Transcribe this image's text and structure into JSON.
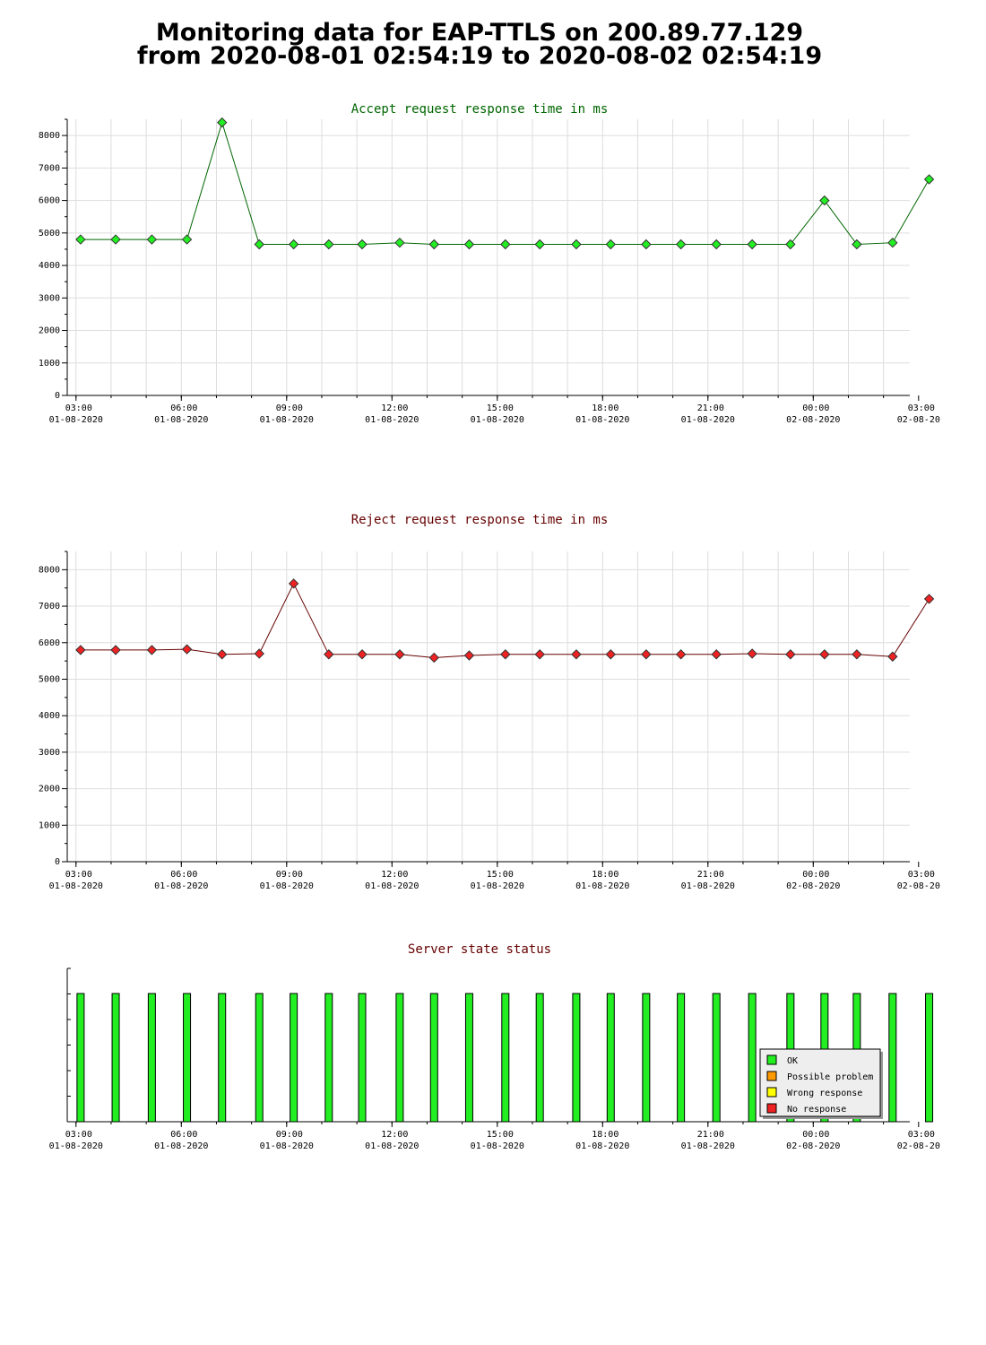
{
  "page": {
    "title_line1": "Monitoring data for EAP-TTLS on 200.89.77.129",
    "title_line2": "from 2020-08-01 02:54:19 to 2020-08-02 02:54:19"
  },
  "colors": {
    "accept_title": "#006600",
    "reject_title": "#660000",
    "status_title": "#660000",
    "accept_marker": "#22ee22",
    "accept_line": "#006600",
    "reject_marker": "#ee2222",
    "reject_line": "#660000",
    "ok": "#22ee22",
    "possible_problem": "#ff9900",
    "wrong_response": "#ffff00",
    "no_response": "#ee2222",
    "grid": "#dddddd"
  },
  "chart_data": [
    {
      "type": "line",
      "title": "Accept request response time in ms",
      "x_unit": "hours",
      "x": [
        0.13,
        1.13,
        2.16,
        3.16,
        4.16,
        5.22,
        6.2,
        7.2,
        8.15,
        9.22,
        10.2,
        11.2,
        12.23,
        13.21,
        14.25,
        15.23,
        16.24,
        17.23,
        18.24,
        19.26,
        20.35,
        21.32,
        22.24,
        23.26,
        24.3
      ],
      "series": [
        {
          "values": [
            4800,
            4800,
            4800,
            4800,
            8400,
            4650,
            4650,
            4650,
            4650,
            4700,
            4650,
            4650,
            4650,
            4650,
            4650,
            4650,
            4650,
            4650,
            4650,
            4650,
            4650,
            6000,
            4650,
            4700,
            6650
          ]
        }
      ],
      "ylim": [
        0,
        8500
      ],
      "yticks": [
        0,
        1000,
        2000,
        3000,
        4000,
        5000,
        6000,
        7000,
        8000
      ],
      "xlim": [
        -0.25,
        23.75
      ],
      "xticks": [
        {
          "t": 0,
          "time": "03:00",
          "date": "01-08-2020"
        },
        {
          "t": 3,
          "time": "06:00",
          "date": "01-08-2020"
        },
        {
          "t": 6,
          "time": "09:00",
          "date": "01-08-2020"
        },
        {
          "t": 9,
          "time": "12:00",
          "date": "01-08-2020"
        },
        {
          "t": 12,
          "time": "15:00",
          "date": "01-08-2020"
        },
        {
          "t": 15,
          "time": "18:00",
          "date": "01-08-2020"
        },
        {
          "t": 18,
          "time": "21:00",
          "date": "01-08-2020"
        },
        {
          "t": 21,
          "time": "00:00",
          "date": "02-08-2020"
        },
        {
          "t": 24,
          "time": "03:00",
          "date": "02-08-20"
        }
      ],
      "grid": true
    },
    {
      "type": "line",
      "title": "Reject request response time in ms",
      "x_unit": "hours",
      "x": [
        0.13,
        1.13,
        2.16,
        3.16,
        4.16,
        5.22,
        6.2,
        7.2,
        8.15,
        9.22,
        10.2,
        11.2,
        12.23,
        13.21,
        14.25,
        15.23,
        16.24,
        17.23,
        18.24,
        19.26,
        20.35,
        21.32,
        22.24,
        23.26,
        24.3
      ],
      "series": [
        {
          "values": [
            5800,
            5800,
            5800,
            5820,
            5680,
            5700,
            7620,
            5680,
            5680,
            5680,
            5590,
            5650,
            5680,
            5680,
            5680,
            5680,
            5680,
            5680,
            5680,
            5700,
            5680,
            5680,
            5680,
            5620,
            7200
          ]
        }
      ],
      "ylim": [
        0,
        8500
      ],
      "yticks": [
        0,
        1000,
        2000,
        3000,
        4000,
        5000,
        6000,
        7000,
        8000
      ],
      "xlim": [
        -0.25,
        23.75
      ],
      "xticks": [
        {
          "t": 0,
          "time": "03:00",
          "date": "01-08-2020"
        },
        {
          "t": 3,
          "time": "06:00",
          "date": "01-08-2020"
        },
        {
          "t": 6,
          "time": "09:00",
          "date": "01-08-2020"
        },
        {
          "t": 9,
          "time": "12:00",
          "date": "01-08-2020"
        },
        {
          "t": 12,
          "time": "15:00",
          "date": "01-08-2020"
        },
        {
          "t": 15,
          "time": "18:00",
          "date": "01-08-2020"
        },
        {
          "t": 18,
          "time": "21:00",
          "date": "01-08-2020"
        },
        {
          "t": 21,
          "time": "00:00",
          "date": "02-08-2020"
        },
        {
          "t": 24,
          "time": "03:00",
          "date": "02-08-20"
        }
      ],
      "grid": true
    },
    {
      "type": "bar",
      "title": "Server state status",
      "x_unit": "hours",
      "x": [
        0.13,
        1.13,
        2.16,
        3.16,
        4.16,
        5.22,
        6.2,
        7.2,
        8.15,
        9.22,
        10.2,
        11.2,
        12.23,
        13.21,
        14.25,
        15.23,
        16.24,
        17.23,
        18.24,
        19.26,
        20.35,
        21.32,
        22.24,
        23.26,
        24.3
      ],
      "states": [
        "OK",
        "OK",
        "OK",
        "OK",
        "OK",
        "OK",
        "OK",
        "OK",
        "OK",
        "OK",
        "OK",
        "OK",
        "OK",
        "OK",
        "OK",
        "OK",
        "OK",
        "OK",
        "OK",
        "OK",
        "OK",
        "OK",
        "OK",
        "OK",
        "OK"
      ],
      "legend": [
        "OK",
        "Possible problem",
        "Wrong response",
        "No response"
      ],
      "legend_position": "bottom-right",
      "xlim": [
        -0.25,
        23.75
      ],
      "xticks": [
        {
          "t": 0,
          "time": "03:00",
          "date": "01-08-2020"
        },
        {
          "t": 3,
          "time": "06:00",
          "date": "01-08-2020"
        },
        {
          "t": 6,
          "time": "09:00",
          "date": "01-08-2020"
        },
        {
          "t": 9,
          "time": "12:00",
          "date": "01-08-2020"
        },
        {
          "t": 12,
          "time": "15:00",
          "date": "01-08-2020"
        },
        {
          "t": 15,
          "time": "18:00",
          "date": "01-08-2020"
        },
        {
          "t": 18,
          "time": "21:00",
          "date": "01-08-2020"
        },
        {
          "t": 21,
          "time": "00:00",
          "date": "02-08-2020"
        },
        {
          "t": 24,
          "time": "03:00",
          "date": "02-08-20"
        }
      ],
      "grid": false
    }
  ]
}
